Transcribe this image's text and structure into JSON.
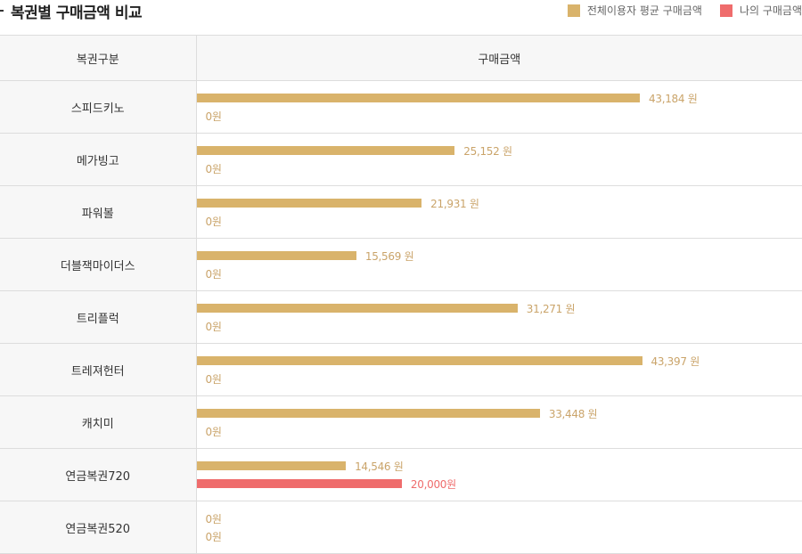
{
  "header": {
    "title": "복권별 구매금액 비교",
    "legend": [
      {
        "label": "전체이용자 평균 구매금액",
        "color": "#d9b36b"
      },
      {
        "label": "나의 구매금액",
        "color": "#ef6c6c"
      }
    ]
  },
  "table": {
    "col_name": "복권구분",
    "col_amount": "구매금액"
  },
  "colors": {
    "avg_bar": "#d9b36b",
    "avg_text": "#caa46a",
    "mine_bar": "#ef6c6c",
    "mine_text": "#ef6c6c"
  },
  "chart_data": {
    "type": "bar",
    "orientation": "horizontal",
    "categories": [
      "스피드키노",
      "메가빙고",
      "파워볼",
      "더블잭마이더스",
      "트리플럭",
      "트레져헌터",
      "캐치미",
      "연금복권720",
      "연금복권520"
    ],
    "series": [
      {
        "name": "전체이용자 평균 구매금액",
        "values": [
          43184,
          25152,
          21931,
          15569,
          31271,
          43397,
          33448,
          14546,
          0
        ],
        "labels": [
          "43,184 원",
          "25,152 원",
          "21,931 원",
          "15,569 원",
          "31,271 원",
          "43,397 원",
          "33,448 원",
          "14,546 원",
          "0원"
        ]
      },
      {
        "name": "나의 구매금액",
        "values": [
          0,
          0,
          0,
          0,
          0,
          0,
          0,
          20000,
          0
        ],
        "labels": [
          "0원",
          "0원",
          "0원",
          "0원",
          "0원",
          "0원",
          "0원",
          "20,000원",
          "0원"
        ]
      }
    ],
    "xlim": [
      0,
      43397
    ]
  }
}
